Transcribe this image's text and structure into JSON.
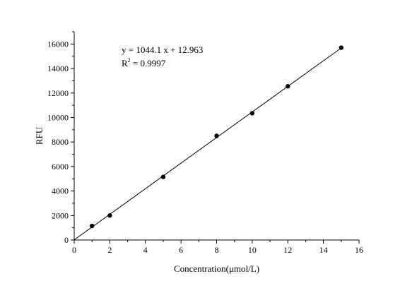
{
  "chart_data": {
    "type": "scatter",
    "xlabel": "Concentration(μmol/L)",
    "ylabel": "RFU",
    "xlim": [
      0,
      16
    ],
    "ylim": [
      0,
      17000
    ],
    "x_ticks": [
      0,
      2,
      4,
      6,
      8,
      10,
      12,
      14,
      16
    ],
    "y_ticks": [
      0,
      2000,
      4000,
      6000,
      8000,
      10000,
      12000,
      14000,
      16000
    ],
    "grid": false,
    "series": [
      {
        "points": [
          {
            "x": 1,
            "y": 1150
          },
          {
            "x": 2,
            "y": 2000
          },
          {
            "x": 5,
            "y": 5150
          },
          {
            "x": 8,
            "y": 8500
          },
          {
            "x": 10,
            "y": 10350
          },
          {
            "x": 12,
            "y": 12550
          },
          {
            "x": 15,
            "y": 15700
          }
        ],
        "color": "#000000"
      }
    ],
    "fit": {
      "slope": 1044.1,
      "intercept": 12.963,
      "x_range": [
        0,
        15
      ],
      "color": "#000000"
    },
    "annotations": {
      "equation": "y = 1044.1 x + 12.963",
      "r2_base": "R",
      "r2_exp": "2",
      "r2_value": " = 0.9997"
    }
  }
}
